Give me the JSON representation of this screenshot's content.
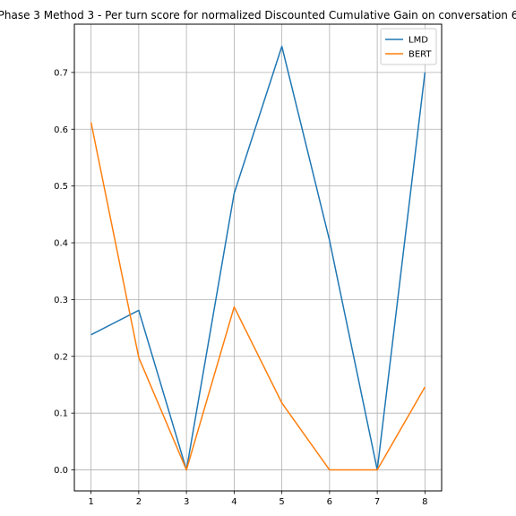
{
  "chart_data": {
    "type": "line",
    "title": "Phase 3 Method 3 - Per turn score for normalized Discounted Cumulative Gain on conversation 6",
    "xlabel": "",
    "ylabel": "",
    "x": [
      1,
      2,
      3,
      4,
      5,
      6,
      7,
      8
    ],
    "xticks": [
      "1",
      "2",
      "3",
      "4",
      "5",
      "6",
      "7",
      "8"
    ],
    "yticks": [
      "0.0",
      "0.1",
      "0.2",
      "0.3",
      "0.4",
      "0.5",
      "0.6",
      "0.7"
    ],
    "xlim": [
      0.65,
      8.35
    ],
    "ylim": [
      -0.037,
      0.785
    ],
    "grid": true,
    "legend_position": "top-right",
    "series": [
      {
        "name": "LMD",
        "color": "#1f77b4",
        "values": [
          0.238,
          0.281,
          0.0,
          0.487,
          0.746,
          0.404,
          0.0,
          0.7
        ]
      },
      {
        "name": "BERT",
        "color": "#ff7f0e",
        "values": [
          0.612,
          0.198,
          0.0,
          0.287,
          0.118,
          0.0,
          0.0,
          0.146
        ]
      }
    ]
  }
}
